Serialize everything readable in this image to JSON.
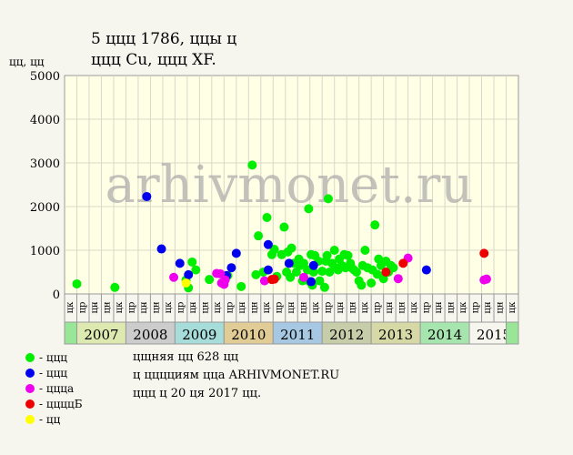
{
  "title_line1": "5 ццц 1786, ццы ц",
  "title_line2": "ццц Cu, ццц XF.",
  "y_axis_label": "цц, цц",
  "watermark": "arhivmonet.ru",
  "footer": {
    "line1": "цщняя цц 628 цц",
    "line2": "ц цццциям ццa ARHIVMONET.RU",
    "line3": "ццц ц 20 ця 2017 цц."
  },
  "legend": [
    {
      "label": "- ццц",
      "color": "#00ee00"
    },
    {
      "label": "- ццц",
      "color": "#0000ee"
    },
    {
      "label": "- цццa",
      "color": "#ee00ee"
    },
    {
      "label": "- ццццБ",
      "color": "#ee0000"
    },
    {
      "label": "- цц",
      "color": "#ffff00"
    }
  ],
  "chart_data": {
    "type": "scatter",
    "ylim": [
      0,
      5000
    ],
    "y_ticks": [
      0,
      1000,
      2000,
      3000,
      4000,
      5000
    ],
    "grid": true,
    "x_unit": "quarter index, 2006 Q4 = 0",
    "quarter_label_seq": [
      "цк",
      "цр",
      "цн",
      "цн",
      "цк",
      "цр",
      "цн",
      "цн",
      "цк",
      "цр",
      "цн",
      "цн",
      "цк",
      "цр",
      "цн",
      "цн",
      "цк",
      "цр",
      "цн",
      "цн",
      "цк",
      "цр",
      "цн",
      "цн",
      "цк",
      "цр",
      "цн",
      "цн",
      "цк",
      "цр",
      "цн",
      "цн",
      "цк",
      "цр",
      "цн",
      "цн",
      "цк"
    ],
    "years": [
      {
        "label": "2007",
        "color": "#dde9b0"
      },
      {
        "label": "2008",
        "color": "#cccccc"
      },
      {
        "label": "2009",
        "color": "#a6dcd9"
      },
      {
        "label": "2010",
        "color": "#e2cc96"
      },
      {
        "label": "2011",
        "color": "#a6c8e2"
      },
      {
        "label": "2012",
        "color": "#c6cda8"
      },
      {
        "label": "2013",
        "color": "#d6d9a6"
      },
      {
        "label": "2014",
        "color": "#a6e6ae"
      },
      {
        "label": "2015",
        "color": "#f6f6ef"
      }
    ],
    "end_color": "#99e699",
    "series": [
      {
        "color": "#00ee00",
        "points": [
          [
            0.5,
            230
          ],
          [
            3.6,
            150
          ],
          [
            9.4,
            320
          ],
          [
            9.6,
            140
          ],
          [
            9.9,
            730
          ],
          [
            10.2,
            550
          ],
          [
            11.3,
            330
          ],
          [
            12.8,
            420
          ],
          [
            13.9,
            170
          ],
          [
            14.8,
            2950
          ],
          [
            15.1,
            440
          ],
          [
            15.3,
            1330
          ],
          [
            15.7,
            500
          ],
          [
            16.0,
            1750
          ],
          [
            16.4,
            900
          ],
          [
            16.6,
            1020
          ],
          [
            16.8,
            400
          ],
          [
            17.2,
            900
          ],
          [
            17.4,
            1530
          ],
          [
            17.6,
            500
          ],
          [
            17.7,
            960
          ],
          [
            17.9,
            380
          ],
          [
            18.0,
            1050
          ],
          [
            18.2,
            700
          ],
          [
            18.4,
            500
          ],
          [
            18.6,
            800
          ],
          [
            18.7,
            650
          ],
          [
            18.9,
            300
          ],
          [
            19.0,
            700
          ],
          [
            19.3,
            550
          ],
          [
            19.4,
            1950
          ],
          [
            19.5,
            280
          ],
          [
            19.6,
            900
          ],
          [
            19.7,
            200
          ],
          [
            19.8,
            500
          ],
          [
            19.9,
            880
          ],
          [
            20.2,
            750
          ],
          [
            20.3,
            300
          ],
          [
            20.5,
            520
          ],
          [
            20.7,
            150
          ],
          [
            20.8,
            750
          ],
          [
            20.9,
            880
          ],
          [
            21.0,
            2180
          ],
          [
            21.1,
            500
          ],
          [
            21.3,
            700
          ],
          [
            21.5,
            1000
          ],
          [
            21.6,
            600
          ],
          [
            21.8,
            550
          ],
          [
            21.9,
            800
          ],
          [
            22.1,
            650
          ],
          [
            22.3,
            900
          ],
          [
            22.4,
            600
          ],
          [
            22.6,
            880
          ],
          [
            22.8,
            700
          ],
          [
            22.9,
            600
          ],
          [
            23.1,
            550
          ],
          [
            23.3,
            500
          ],
          [
            23.5,
            300
          ],
          [
            23.7,
            200
          ],
          [
            23.8,
            650
          ],
          [
            24.0,
            1000
          ],
          [
            24.2,
            600
          ],
          [
            24.5,
            250
          ],
          [
            24.6,
            550
          ],
          [
            24.8,
            1580
          ],
          [
            25.0,
            450
          ],
          [
            25.1,
            800
          ],
          [
            25.3,
            650
          ],
          [
            25.5,
            350
          ],
          [
            25.7,
            750
          ],
          [
            25.9,
            500
          ],
          [
            26.1,
            650
          ],
          [
            26.3,
            600
          ]
        ]
      },
      {
        "color": "#0000ee",
        "points": [
          [
            6.2,
            2230
          ],
          [
            7.4,
            1030
          ],
          [
            8.9,
            700
          ],
          [
            9.6,
            440
          ],
          [
            12.7,
            420
          ],
          [
            13.1,
            600
          ],
          [
            13.5,
            930
          ],
          [
            16.1,
            1130
          ],
          [
            16.1,
            550
          ],
          [
            17.8,
            700
          ],
          [
            19.6,
            280
          ],
          [
            19.8,
            650
          ],
          [
            29.0,
            550
          ]
        ]
      },
      {
        "color": "#ee00ee",
        "points": [
          [
            8.4,
            380
          ],
          [
            11.9,
            470
          ],
          [
            12.2,
            460
          ],
          [
            12.3,
            250
          ],
          [
            12.5,
            220
          ],
          [
            12.6,
            320
          ],
          [
            15.8,
            300
          ],
          [
            19.0,
            380
          ],
          [
            26.7,
            350
          ],
          [
            27.5,
            820
          ],
          [
            33.7,
            320
          ],
          [
            33.9,
            340
          ]
        ]
      },
      {
        "color": "#ee0000",
        "points": [
          [
            16.4,
            330
          ],
          [
            16.6,
            340
          ],
          [
            25.7,
            500
          ],
          [
            27.1,
            700
          ],
          [
            33.7,
            930
          ]
        ]
      },
      {
        "color": "#ffff00",
        "points": [
          [
            9.4,
            250
          ]
        ]
      }
    ]
  }
}
